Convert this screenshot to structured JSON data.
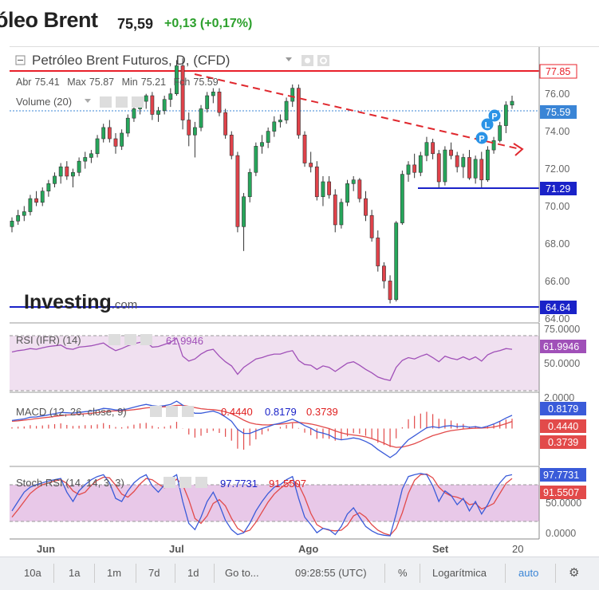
{
  "header": {
    "title": "óleo Brent",
    "price": "75,59",
    "change": "+0,13 (+0,17%)"
  },
  "chart": {
    "title": "Petróleo Brent Futuros, D, (CFD)",
    "ohlc": {
      "open_label": "Abr",
      "open": "75.41",
      "high_label": "Max",
      "high": "75.87",
      "low_label": "Min",
      "low": "75.21",
      "close_label": "Fch",
      "close": "75.59"
    },
    "volume_label": "Volume (20)",
    "watermark": "Investing",
    "watermark_suffix": ".com",
    "price_ticks": [
      "76.00",
      "74.00",
      "72.00",
      "70.00",
      "68.00",
      "66.00",
      "64.00"
    ],
    "price_tags": {
      "top": "77.85",
      "current": "75.59",
      "support": "71.29",
      "bottom": "64.64"
    },
    "colors": {
      "up": "#26a65b",
      "down": "#e0424a",
      "red_line": "#e8202a",
      "blue_line": "#1a22c8",
      "current": "#3a85d6",
      "indicator": "#a050b8"
    }
  },
  "rsi": {
    "label": "RSI (IFR) (14)",
    "value": "61.9946",
    "ticks": [
      "75.0000",
      "50.0000"
    ]
  },
  "macd": {
    "label": "MACD (12, 26, close, 9)",
    "v1": "0.4440",
    "v2": "0.8179",
    "v3": "0.3739",
    "ticks": [
      "2.0000"
    ]
  },
  "stoch": {
    "label": "Stoch RSI (14, 14, 3, 3)",
    "k": "97.7731",
    "d": "91.5507",
    "ticks": [
      "50.0000",
      "0.0000"
    ]
  },
  "xaxis": {
    "labels": [
      "Jun",
      "Jul",
      "Ago",
      "Set",
      "20"
    ]
  },
  "toolbar": {
    "items": [
      "10a",
      "1a",
      "1m",
      "7d",
      "1d",
      "Go to...",
      "09:28:55 (UTC)",
      "%",
      "Logarítmica",
      "auto"
    ]
  },
  "chart_data": [
    {
      "type": "candlestick",
      "title": "Petróleo Brent Futuros, D, (CFD)",
      "ylim": [
        63.8,
        78.5
      ],
      "ohlc": [
        [
          68.9,
          69.4,
          68.6,
          69.2
        ],
        [
          69.2,
          69.8,
          69.0,
          69.5
        ],
        [
          69.5,
          70.0,
          69.2,
          69.7
        ],
        [
          69.7,
          70.6,
          69.5,
          70.4
        ],
        [
          70.4,
          70.8,
          70.0,
          70.2
        ],
        [
          70.2,
          71.0,
          70.0,
          70.8
        ],
        [
          70.8,
          71.4,
          70.5,
          71.2
        ],
        [
          71.2,
          71.8,
          71.0,
          71.6
        ],
        [
          71.6,
          72.3,
          71.2,
          72.1
        ],
        [
          72.1,
          72.4,
          71.4,
          71.6
        ],
        [
          71.6,
          72.0,
          71.0,
          71.8
        ],
        [
          71.8,
          72.6,
          71.6,
          72.4
        ],
        [
          72.4,
          72.9,
          72.0,
          72.6
        ],
        [
          72.6,
          73.0,
          72.3,
          72.8
        ],
        [
          72.8,
          73.8,
          72.6,
          73.6
        ],
        [
          73.6,
          74.4,
          73.4,
          74.2
        ],
        [
          74.2,
          74.6,
          73.4,
          73.6
        ],
        [
          73.6,
          73.9,
          72.8,
          73.2
        ],
        [
          73.2,
          74.1,
          73.0,
          73.9
        ],
        [
          73.9,
          74.9,
          73.7,
          74.7
        ],
        [
          74.7,
          75.4,
          74.5,
          75.2
        ],
        [
          75.2,
          75.8,
          74.9,
          75.6
        ],
        [
          75.6,
          76.0,
          75.2,
          75.9
        ],
        [
          75.9,
          76.1,
          74.6,
          74.9
        ],
        [
          74.9,
          75.3,
          74.5,
          75.1
        ],
        [
          75.1,
          75.9,
          74.9,
          75.7
        ],
        [
          75.7,
          76.3,
          75.3,
          76.0
        ],
        [
          76.0,
          77.8,
          75.9,
          77.5
        ],
        [
          77.5,
          77.9,
          74.1,
          74.6
        ],
        [
          74.6,
          75.0,
          73.2,
          73.8
        ],
        [
          73.8,
          74.5,
          72.6,
          74.2
        ],
        [
          74.2,
          75.4,
          74.0,
          75.2
        ],
        [
          75.2,
          76.1,
          75.0,
          75.9
        ],
        [
          75.9,
          76.3,
          75.5,
          76.1
        ],
        [
          76.1,
          76.3,
          74.8,
          75.0
        ],
        [
          75.0,
          75.2,
          73.6,
          73.8
        ],
        [
          73.8,
          74.0,
          72.5,
          72.7
        ],
        [
          72.7,
          72.9,
          68.6,
          68.9
        ],
        [
          68.9,
          70.7,
          67.6,
          70.5
        ],
        [
          70.5,
          72.0,
          70.2,
          71.8
        ],
        [
          71.8,
          73.4,
          71.6,
          73.2
        ],
        [
          73.2,
          73.8,
          72.8,
          73.4
        ],
        [
          73.4,
          74.2,
          73.1,
          74.0
        ],
        [
          74.0,
          74.8,
          73.7,
          74.5
        ],
        [
          74.5,
          74.9,
          74.2,
          74.6
        ],
        [
          74.6,
          75.8,
          74.4,
          75.6
        ],
        [
          75.6,
          76.5,
          75.3,
          76.3
        ],
        [
          76.3,
          76.5,
          73.6,
          73.8
        ],
        [
          73.8,
          74.0,
          72.1,
          72.3
        ],
        [
          72.3,
          72.9,
          71.8,
          72.1
        ],
        [
          72.1,
          72.4,
          70.3,
          70.5
        ],
        [
          70.5,
          71.6,
          70.0,
          71.3
        ],
        [
          71.3,
          71.6,
          70.4,
          70.6
        ],
        [
          70.6,
          70.9,
          68.6,
          69.0
        ],
        [
          69.0,
          70.4,
          68.8,
          70.2
        ],
        [
          70.2,
          71.4,
          70.0,
          71.2
        ],
        [
          71.2,
          71.6,
          70.8,
          71.4
        ],
        [
          71.4,
          71.5,
          70.2,
          70.4
        ],
        [
          70.4,
          70.8,
          69.2,
          69.5
        ],
        [
          69.5,
          69.8,
          68.1,
          68.3
        ],
        [
          68.3,
          68.7,
          66.5,
          66.8
        ],
        [
          66.8,
          67.0,
          65.6,
          66.0
        ],
        [
          66.0,
          66.3,
          64.8,
          65.0
        ],
        [
          65.0,
          69.2,
          64.9,
          69.1
        ],
        [
          69.1,
          71.9,
          69.0,
          71.7
        ],
        [
          71.7,
          72.4,
          71.3,
          72.2
        ],
        [
          72.2,
          72.8,
          71.5,
          71.8
        ],
        [
          71.8,
          72.9,
          71.6,
          72.7
        ],
        [
          72.7,
          73.7,
          72.4,
          73.4
        ],
        [
          73.4,
          73.6,
          72.5,
          72.8
        ],
        [
          72.8,
          73.0,
          71.0,
          71.3
        ],
        [
          71.3,
          73.2,
          71.1,
          73.0
        ],
        [
          73.0,
          73.4,
          72.5,
          72.7
        ],
        [
          72.7,
          72.9,
          71.8,
          72.1
        ],
        [
          72.1,
          72.8,
          71.5,
          72.6
        ],
        [
          72.6,
          73.0,
          71.4,
          71.5
        ],
        [
          71.5,
          72.7,
          71.2,
          72.5
        ],
        [
          72.5,
          72.9,
          71.0,
          71.4
        ],
        [
          71.4,
          73.2,
          71.3,
          73.0
        ],
        [
          73.0,
          73.7,
          72.8,
          73.5
        ],
        [
          73.5,
          74.5,
          73.4,
          74.3
        ],
        [
          74.3,
          75.6,
          73.9,
          75.4
        ],
        [
          75.4,
          75.9,
          75.2,
          75.6
        ]
      ],
      "levels": [
        77.85,
        75.59,
        71.29,
        64.64
      ]
    },
    {
      "type": "line",
      "title": "RSI (IFR) (14)",
      "ylim": [
        0,
        100
      ],
      "series": [
        {
          "name": "RSI (IFR) (14)",
          "values": [
            58,
            60,
            61,
            63,
            62,
            64,
            66,
            67,
            68,
            63,
            62,
            65,
            66,
            67,
            69,
            71,
            65,
            60,
            63,
            67,
            70,
            72,
            73,
            65,
            66,
            69,
            72,
            78,
            52,
            45,
            48,
            55,
            60,
            62,
            52,
            44,
            38,
            26,
            36,
            42,
            48,
            50,
            53,
            55,
            55,
            58,
            60,
            46,
            40,
            39,
            33,
            38,
            36,
            30,
            36,
            42,
            44,
            39,
            33,
            28,
            22,
            19,
            17,
            36,
            46,
            50,
            48,
            52,
            55,
            50,
            44,
            52,
            49,
            47,
            51,
            47,
            51,
            45,
            54,
            58,
            60,
            63,
            62
          ]
        }
      ]
    },
    {
      "type": "line",
      "title": "MACD (12, 26, close, 9)",
      "ylim": [
        -2.3,
        2.2
      ],
      "series": [
        {
          "name": "MACD",
          "values": [
            0.5,
            0.55,
            0.6,
            0.7,
            0.72,
            0.78,
            0.85,
            0.92,
            1.0,
            0.98,
            0.96,
            1.0,
            1.05,
            1.08,
            1.15,
            1.25,
            1.22,
            1.15,
            1.15,
            1.22,
            1.32,
            1.42,
            1.5,
            1.42,
            1.38,
            1.42,
            1.5,
            1.7,
            1.45,
            1.15,
            0.95,
            0.95,
            1.02,
            1.08,
            0.95,
            0.72,
            0.45,
            -0.05,
            -0.3,
            -0.3,
            -0.15,
            0.0,
            0.12,
            0.25,
            0.33,
            0.45,
            0.58,
            0.4,
            0.18,
            0.02,
            -0.2,
            -0.28,
            -0.4,
            -0.62,
            -0.7,
            -0.65,
            -0.58,
            -0.65,
            -0.8,
            -1.0,
            -1.3,
            -1.55,
            -1.8,
            -1.55,
            -1.1,
            -0.7,
            -0.45,
            -0.2,
            0.05,
            0.12,
            0.05,
            0.15,
            0.18,
            0.12,
            0.15,
            0.08,
            0.12,
            0.05,
            0.15,
            0.28,
            0.45,
            0.65,
            0.82
          ]
        },
        {
          "name": "Signal",
          "values": [
            0.45,
            0.48,
            0.52,
            0.57,
            0.62,
            0.66,
            0.7,
            0.75,
            0.8,
            0.84,
            0.86,
            0.89,
            0.92,
            0.95,
            0.99,
            1.04,
            1.08,
            1.09,
            1.1,
            1.13,
            1.17,
            1.22,
            1.28,
            1.31,
            1.33,
            1.35,
            1.38,
            1.44,
            1.44,
            1.38,
            1.3,
            1.23,
            1.19,
            1.17,
            1.12,
            1.04,
            0.92,
            0.73,
            0.52,
            0.36,
            0.27,
            0.23,
            0.22,
            0.25,
            0.27,
            0.31,
            0.37,
            0.38,
            0.34,
            0.28,
            0.2,
            0.1,
            0.0,
            -0.15,
            -0.27,
            -0.35,
            -0.4,
            -0.45,
            -0.52,
            -0.62,
            -0.75,
            -0.91,
            -1.08,
            -1.17,
            -1.15,
            -1.06,
            -0.94,
            -0.78,
            -0.6,
            -0.44,
            -0.33,
            -0.22,
            -0.13,
            -0.08,
            -0.03,
            0.0,
            0.02,
            0.03,
            0.05,
            0.1,
            0.18,
            0.3,
            0.44
          ]
        }
      ]
    },
    {
      "type": "line",
      "title": "Stoch RSI (14, 14, 3, 3)",
      "ylim": [
        -5,
        110
      ],
      "series": [
        {
          "name": "K",
          "values": [
            40,
            55,
            70,
            78,
            82,
            85,
            88,
            90,
            92,
            70,
            55,
            72,
            82,
            90,
            95,
            98,
            85,
            60,
            55,
            72,
            85,
            93,
            98,
            80,
            70,
            82,
            92,
            98,
            55,
            20,
            10,
            30,
            55,
            70,
            50,
            25,
            10,
            2,
            5,
            20,
            40,
            55,
            68,
            78,
            82,
            90,
            95,
            60,
            30,
            18,
            5,
            12,
            10,
            2,
            15,
            35,
            45,
            30,
            15,
            8,
            3,
            1,
            0,
            35,
            75,
            95,
            98,
            100,
            98,
            80,
            55,
            72,
            65,
            50,
            60,
            40,
            55,
            35,
            50,
            70,
            85,
            96,
            98
          ]
        },
        {
          "name": "D",
          "values": [
            30,
            42,
            55,
            68,
            76,
            82,
            85,
            88,
            90,
            84,
            72,
            66,
            70,
            81,
            89,
            94,
            93,
            81,
            67,
            62,
            71,
            83,
            92,
            90,
            83,
            77,
            81,
            91,
            82,
            58,
            28,
            20,
            32,
            52,
            58,
            48,
            28,
            12,
            6,
            9,
            22,
            38,
            54,
            67,
            76,
            83,
            89,
            82,
            62,
            36,
            18,
            12,
            9,
            8,
            9,
            17,
            32,
            37,
            30,
            18,
            9,
            4,
            1,
            12,
            37,
            68,
            89,
            98,
            99,
            93,
            78,
            69,
            64,
            62,
            58,
            50,
            52,
            43,
            47,
            52,
            68,
            84,
            92
          ]
        }
      ]
    }
  ]
}
